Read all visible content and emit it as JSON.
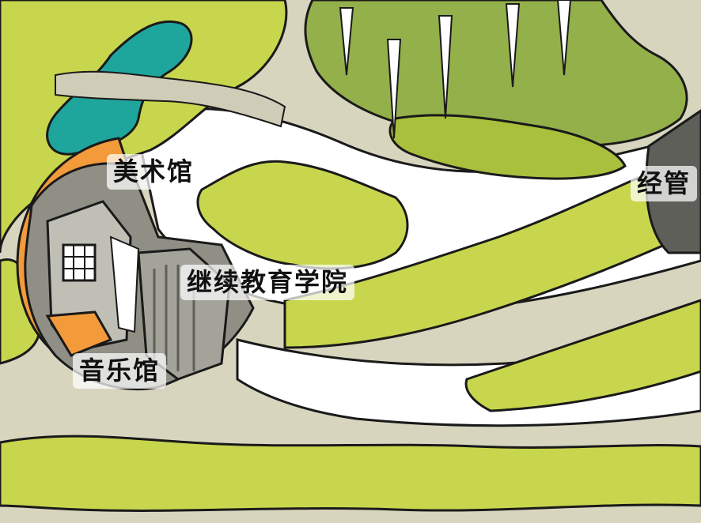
{
  "map": {
    "colors": {
      "ground": "#d8d5bf",
      "path": "#ffffff",
      "grass": "#c8d64e",
      "grass_dark": "#a9c03d",
      "tree_canopy": "#93b04a",
      "tree_canopy_dark": "#7f9e39",
      "water": "#1ea69c",
      "roof_orange": "#f39a3b",
      "building_gray": "#8f8f86",
      "building_light": "#bfbfb6",
      "building_dark": "#5f5f59",
      "outline": "#1a1a1a"
    },
    "labels": {
      "art_museum": "美术馆",
      "continuing_education": "继续教育学院",
      "music_hall": "音乐馆",
      "economics_partial": "经管"
    }
  }
}
